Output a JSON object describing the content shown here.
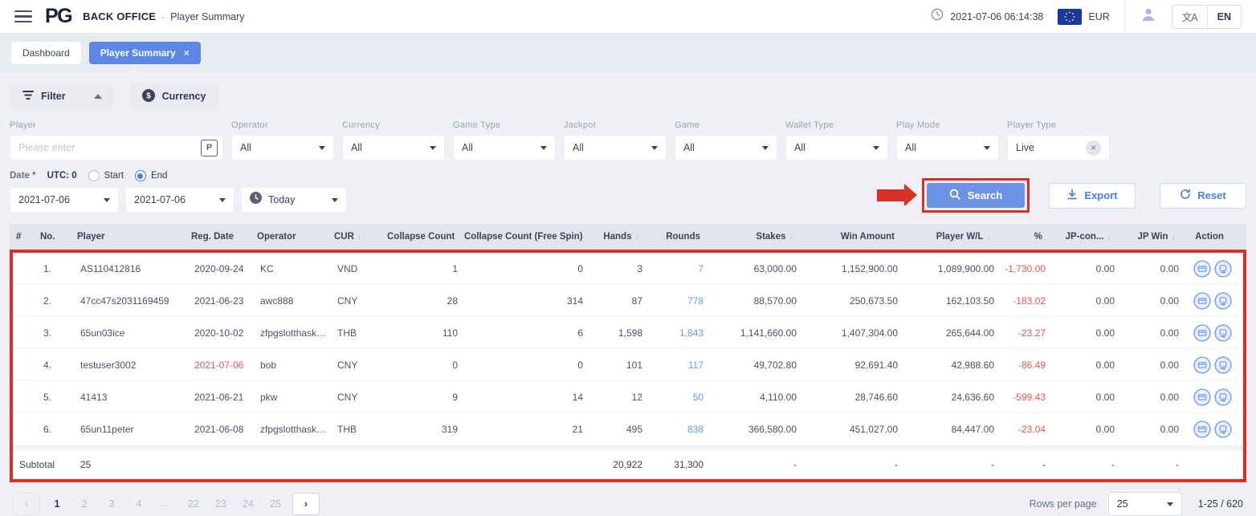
{
  "header": {
    "brand": "PG",
    "app_title": "BACK OFFICE",
    "title_separator": "-",
    "page_title": "Player Summary",
    "datetime": "2021-07-06 06:14:38",
    "currency": "EUR",
    "language": "EN"
  },
  "tabs": [
    {
      "label": "Dashboard",
      "active": false
    },
    {
      "label": "Player Summary",
      "active": true,
      "closable": true
    }
  ],
  "icons": {
    "close": "×",
    "clear": "×",
    "sort_down": "↓",
    "translate": "文A"
  },
  "filter": {
    "filter_button": "Filter",
    "currency_button": "Currency",
    "player_lookup_label": "P",
    "fields": [
      {
        "label": "Player",
        "type": "input",
        "placeholder": "Please enter",
        "value": ""
      },
      {
        "label": "Operator",
        "value": "All"
      },
      {
        "label": "Currency",
        "value": "All"
      },
      {
        "label": "Game Type",
        "value": "All"
      },
      {
        "label": "Jackpot",
        "value": "All"
      },
      {
        "label": "Game",
        "value": "All"
      },
      {
        "label": "Wallet Type",
        "value": "All"
      },
      {
        "label": "Play Mode",
        "value": "All"
      },
      {
        "label": "Player Type",
        "value": "Live",
        "clearable": true
      }
    ],
    "date": {
      "label": "Date *",
      "utc": "UTC: 0",
      "start_label": "Start",
      "end_label": "End",
      "selected": "End",
      "from": "2021-07-06",
      "to": "2021-07-06",
      "quick": "Today"
    },
    "actions": {
      "search": "Search",
      "export": "Export",
      "reset": "Reset"
    }
  },
  "table": {
    "columns": [
      {
        "label": "#",
        "align": "left"
      },
      {
        "label": "No.",
        "align": "left"
      },
      {
        "label": "Player",
        "align": "left"
      },
      {
        "label": "Reg. Date",
        "align": "left"
      },
      {
        "label": "Operator",
        "align": "left"
      },
      {
        "label": "CUR",
        "align": "left",
        "sortable": true
      },
      {
        "label": "Collapse Count",
        "align": "right"
      },
      {
        "label": "Collapse Count (Free Spin)",
        "align": "right"
      },
      {
        "label": "Hands",
        "align": "right",
        "sortable": true
      },
      {
        "label": "Rounds",
        "align": "right"
      },
      {
        "label": "Stakes",
        "align": "right",
        "sortable": true
      },
      {
        "label": "Win Amount",
        "align": "right"
      },
      {
        "label": "Player W/L",
        "align": "right",
        "sortable": true
      },
      {
        "label": "%",
        "align": "right"
      },
      {
        "label": "JP-con...",
        "align": "right",
        "sortable": true
      },
      {
        "label": "JP Win",
        "align": "right",
        "sortable": true
      },
      {
        "label": "Action",
        "align": "center"
      }
    ],
    "action_icons": [
      "card-icon",
      "transfer-icon"
    ],
    "rows": [
      {
        "no": "1.",
        "player": "AS110412816",
        "reg_date": "2020-09-24",
        "reg_date_red": false,
        "operator": "KC",
        "cur": "VND",
        "collapse_count": "1",
        "collapse_count_free_spin": "0",
        "hands": "3",
        "rounds": "7",
        "stakes": "63,000.00",
        "win_amount": "1,152,900.00",
        "player_wl": "1,089,900.00",
        "pct": "-1,730.00",
        "jp_con": "0.00",
        "jp_win": "0.00"
      },
      {
        "no": "2.",
        "player": "47cc47s2031169459",
        "reg_date": "2021-06-23",
        "reg_date_red": false,
        "operator": "awc888",
        "cur": "CNY",
        "collapse_count": "28",
        "collapse_count_free_spin": "314",
        "hands": "87",
        "rounds": "778",
        "stakes": "88,570.00",
        "win_amount": "250,673.50",
        "player_wl": "162,103.50",
        "pct": "-183.02",
        "jp_con": "0.00",
        "jp_win": "0.00"
      },
      {
        "no": "3.",
        "player": "65un03ice",
        "reg_date": "2020-10-02",
        "reg_date_red": false,
        "operator": "zfpgslotthaskme...",
        "cur": "THB",
        "collapse_count": "110",
        "collapse_count_free_spin": "6",
        "hands": "1,598",
        "rounds": "1,843",
        "stakes": "1,141,660.00",
        "win_amount": "1,407,304.00",
        "player_wl": "265,644.00",
        "pct": "-23.27",
        "jp_con": "0.00",
        "jp_win": "0.00"
      },
      {
        "no": "4.",
        "player": "testuser3002",
        "reg_date": "2021-07-06",
        "reg_date_red": true,
        "operator": "bob",
        "cur": "CNY",
        "collapse_count": "0",
        "collapse_count_free_spin": "0",
        "hands": "101",
        "rounds": "117",
        "stakes": "49,702.80",
        "win_amount": "92,691.40",
        "player_wl": "42,988.60",
        "pct": "-86.49",
        "jp_con": "0.00",
        "jp_win": "0.00"
      },
      {
        "no": "5.",
        "player": "41413",
        "reg_date": "2021-06-21",
        "reg_date_red": false,
        "operator": "pkw",
        "cur": "CNY",
        "collapse_count": "9",
        "collapse_count_free_spin": "14",
        "hands": "12",
        "rounds": "50",
        "stakes": "4,110.00",
        "win_amount": "28,746.60",
        "player_wl": "24,636.60",
        "pct": "-599.43",
        "jp_con": "0.00",
        "jp_win": "0.00"
      },
      {
        "no": "6.",
        "player": "65un11peter",
        "reg_date": "2021-06-08",
        "reg_date_red": false,
        "operator": "zfpgslotthaskme...",
        "cur": "THB",
        "collapse_count": "319",
        "collapse_count_free_spin": "21",
        "hands": "495",
        "rounds": "838",
        "stakes": "366,580.00",
        "win_amount": "451,027.00",
        "player_wl": "84,447.00",
        "pct": "-23.04",
        "jp_con": "0.00",
        "jp_win": "0.00"
      }
    ],
    "subtotal": {
      "label": "Subtotal",
      "no": "25",
      "hands": "20,922",
      "rounds": "31,300",
      "stakes": "-",
      "win_amount": "-",
      "player_wl": "-",
      "pct": "-",
      "jp_con": "-",
      "jp_win": "-"
    }
  },
  "pagination": {
    "prev_label": "‹",
    "next_label": "›",
    "pages": [
      "1",
      "2",
      "3",
      "4",
      "…",
      "22",
      "23",
      "24",
      "25"
    ],
    "current_page": "1",
    "rows_per_page_label": "Rows per page",
    "rows_per_page_value": "25",
    "range_label": "1-25 / 620"
  }
}
